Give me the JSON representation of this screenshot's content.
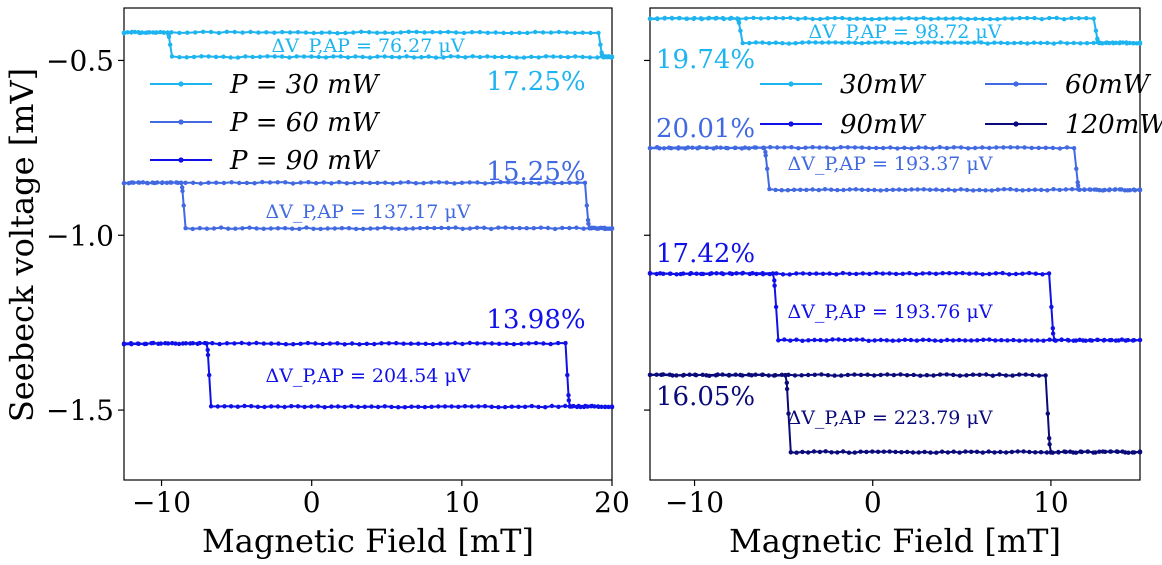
{
  "chart_data": [
    {
      "type": "line",
      "panel": "left",
      "xlabel": "Magnetic Field [mT]",
      "ylabel": "Seebeck voltage [mV]",
      "xlim": [
        -12.5,
        20
      ],
      "ylim": [
        -1.7,
        -0.35
      ],
      "xticks": [
        -10,
        0,
        10,
        20
      ],
      "xtick_labels": [
        "−10",
        "0",
        "10",
        "20"
      ],
      "yticks": [
        -0.5,
        -1.0,
        -1.5
      ],
      "ytick_labels": [
        "−0.5",
        "−1.0",
        "−1.5"
      ],
      "legend": {
        "position": "upper-left",
        "columns": 1
      },
      "series": [
        {
          "name": "P = 30 mW",
          "legend_label": "P = 30 mW",
          "color": "#1EB4F0",
          "high": -0.42,
          "low": -0.49,
          "switch_down": -9.3,
          "switch_up": 19.1,
          "x_range": [
            -12.5,
            20
          ],
          "pct": "17.25%",
          "dv": "ΔV_P,AP = 76.27 μV"
        },
        {
          "name": "P = 60 mW",
          "legend_label": "P = 60 mW",
          "color": "#4169E1",
          "high": -0.85,
          "low": -0.98,
          "switch_down": -8.4,
          "switch_up": 18.2,
          "x_range": [
            -12.5,
            20
          ],
          "pct": "15.25%",
          "dv": "ΔV_P,AP = 137.17 μV"
        },
        {
          "name": "P = 90 mW",
          "legend_label": "P = 90 mW",
          "color": "#1010E8",
          "high": -1.31,
          "low": -1.49,
          "switch_down": -6.7,
          "switch_up": 16.9,
          "x_range": [
            -12.5,
            20
          ],
          "pct": "13.98%",
          "dv": "ΔV_P,AP = 204.54 μV"
        }
      ]
    },
    {
      "type": "line",
      "panel": "right",
      "xlabel": "Magnetic Field [mT]",
      "ylabel": "",
      "xlim": [
        -12.5,
        15
      ],
      "ylim": [
        -1.7,
        -0.35
      ],
      "xticks": [
        -10,
        0,
        10
      ],
      "xtick_labels": [
        "−10",
        "0",
        "10"
      ],
      "yticks": [
        -0.5,
        -1.0,
        -1.5
      ],
      "ytick_labels": [
        "",
        "",
        ""
      ],
      "legend": {
        "position": "upper-right",
        "columns": 2
      },
      "series": [
        {
          "name": "30mW",
          "legend_label": "30mW",
          "color": "#1EB4F0",
          "high": -0.38,
          "low": -0.45,
          "switch_down": -7.3,
          "switch_up": 12.4,
          "x_range": [
            -12.5,
            15
          ],
          "pct": "19.74%",
          "dv": "ΔV_P,AP = 98.72 μV"
        },
        {
          "name": "60mW",
          "legend_label": "60mW",
          "color": "#4169E1",
          "high": -0.75,
          "low": -0.87,
          "switch_down": -5.8,
          "switch_up": 11.3,
          "x_range": [
            -12.5,
            15
          ],
          "pct": "20.01%",
          "dv": "ΔV_P,AP = 193.37 μV"
        },
        {
          "name": "90mW",
          "legend_label": "90mW",
          "color": "#1010E8",
          "high": -1.11,
          "low": -1.3,
          "switch_down": -5.3,
          "switch_up": 9.9,
          "x_range": [
            -12.5,
            15
          ],
          "pct": "17.42%",
          "dv": "ΔV_P,AP = 193.76 μV"
        },
        {
          "name": "120mW",
          "legend_label": "120mW",
          "color": "#0A0A7A",
          "high": -1.4,
          "low": -1.62,
          "switch_down": -4.6,
          "switch_up": 9.7,
          "x_range": [
            -12.5,
            15
          ],
          "pct": "16.05%",
          "dv": "ΔV_P,AP = 223.79 μV"
        }
      ]
    }
  ]
}
